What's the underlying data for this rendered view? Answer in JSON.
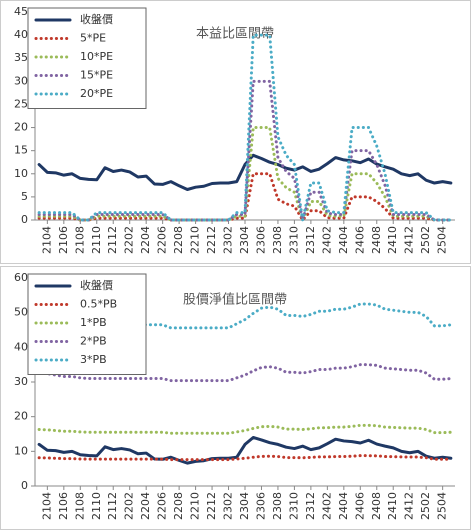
{
  "chart_data": [
    {
      "type": "line",
      "title": "本益比區間帶",
      "legend": "upper left",
      "grid": false,
      "categories": [
        null,
        "2104",
        null,
        "2106",
        null,
        "2108",
        null,
        "2110",
        null,
        "2112",
        null,
        "2202",
        null,
        "2204",
        null,
        "2206",
        null,
        "2208",
        null,
        "2210",
        null,
        "2212",
        null,
        "2302",
        null,
        "2304",
        null,
        "2306",
        null,
        "2308",
        null,
        "2310",
        null,
        "2312",
        null,
        "2402",
        null,
        "2404",
        null,
        "2406",
        null,
        "2408",
        null,
        "2410",
        null,
        "2412",
        null,
        "2502",
        null,
        "2504",
        null
      ],
      "ylim": [
        0,
        45
      ],
      "yticks": [
        0,
        5,
        10,
        15,
        20,
        25,
        30,
        35,
        40,
        45
      ],
      "series": [
        {
          "name": "收盤價",
          "color": "#1f3864",
          "style": "solid",
          "values": [
            12,
            10.3,
            10.2,
            9.7,
            10,
            9,
            8.8,
            8.7,
            11.3,
            10.5,
            10.8,
            10.4,
            9.3,
            9.5,
            7.8,
            7.7,
            8.3,
            7.4,
            6.6,
            7.1,
            7.3,
            7.9,
            8,
            8,
            8.3,
            12,
            14,
            13.3,
            12.5,
            12,
            11.2,
            10.8,
            11.5,
            10.5,
            11,
            12.2,
            13.5,
            13,
            12.8,
            12.4,
            13.2,
            12.1,
            11.5,
            11,
            10,
            9.6,
            10,
            8.6,
            8,
            8.3,
            8
          ]
        },
        {
          "name": "5*PE",
          "color": "#c0392b",
          "style": "dotted",
          "values": [
            0.4,
            0.4,
            0.4,
            0.4,
            0.4,
            0,
            0,
            0.4,
            0.4,
            0.4,
            0.4,
            0.4,
            0.4,
            0.4,
            0.4,
            0.4,
            0,
            0,
            0,
            0,
            0,
            0,
            0,
            0,
            0.4,
            0.4,
            10,
            10,
            10,
            4.5,
            3.5,
            3,
            0,
            2,
            2,
            0.5,
            0.4,
            0.4,
            5,
            5,
            5,
            4,
            2.5,
            0.4,
            0.4,
            0.4,
            0.4,
            0.4,
            0,
            0,
            0
          ]
        },
        {
          "name": "10*PE",
          "color": "#9bbb59",
          "style": "dotted",
          "values": [
            0.8,
            0.8,
            0.8,
            0.8,
            0.8,
            0,
            0,
            0.8,
            0.8,
            0.8,
            0.8,
            0.8,
            0.8,
            0.8,
            0.8,
            0.8,
            0,
            0,
            0,
            0,
            0,
            0,
            0,
            0,
            0.8,
            0.8,
            20,
            20,
            20,
            9,
            7,
            6,
            0,
            4,
            4,
            1,
            0.8,
            0.8,
            10,
            10,
            10,
            8,
            5,
            0.8,
            0.8,
            0.8,
            0.8,
            0.8,
            0,
            0,
            0
          ]
        },
        {
          "name": "15*PE",
          "color": "#8064a2",
          "style": "dotted",
          "values": [
            1.2,
            1.2,
            1.2,
            1.2,
            1.2,
            0,
            0,
            1.2,
            1.2,
            1.2,
            1.2,
            1.2,
            1.2,
            1.2,
            1.2,
            1.2,
            0,
            0,
            0,
            0,
            0,
            0,
            0,
            0,
            1.2,
            1.2,
            30,
            30,
            30,
            13.5,
            10.5,
            9,
            0,
            6,
            6,
            1.5,
            1.2,
            1.2,
            15,
            15,
            15,
            12,
            7.5,
            1.2,
            1.2,
            1.2,
            1.2,
            1.2,
            0,
            0,
            0
          ]
        },
        {
          "name": "20*PE",
          "color": "#4bacc6",
          "style": "dotted",
          "values": [
            1.6,
            1.6,
            1.6,
            1.6,
            1.6,
            0,
            0,
            1.6,
            1.6,
            1.6,
            1.6,
            1.6,
            1.6,
            1.6,
            1.6,
            1.6,
            0,
            0,
            0,
            0,
            0,
            0,
            0,
            0,
            1.6,
            1.6,
            40,
            40,
            40,
            18,
            14,
            12,
            0,
            8,
            8,
            2,
            1.6,
            1.6,
            20,
            20,
            20,
            16,
            10,
            1.6,
            1.6,
            1.6,
            1.6,
            1.6,
            0,
            0,
            0
          ]
        }
      ]
    },
    {
      "type": "line",
      "title": "股價淨值比區間帶",
      "legend": "upper left",
      "grid": false,
      "categories": [
        null,
        "2104",
        null,
        "2106",
        null,
        "2108",
        null,
        "2110",
        null,
        "2112",
        null,
        "2202",
        null,
        "2204",
        null,
        "2206",
        null,
        "2208",
        null,
        "2210",
        null,
        "2212",
        null,
        "2302",
        null,
        "2304",
        null,
        "2306",
        null,
        "2308",
        null,
        "2310",
        null,
        "2312",
        null,
        "2402",
        null,
        "2404",
        null,
        "2406",
        null,
        "2408",
        null,
        "2410",
        null,
        "2412",
        null,
        "2502",
        null,
        "2504",
        null
      ],
      "ylim": [
        0,
        60
      ],
      "yticks": [
        0,
        10,
        20,
        30,
        40,
        50,
        60
      ],
      "series": [
        {
          "name": "收盤價",
          "color": "#1f3864",
          "style": "solid",
          "values": [
            12,
            10.3,
            10.2,
            9.7,
            10,
            9,
            8.8,
            8.7,
            11.3,
            10.5,
            10.8,
            10.4,
            9.3,
            9.5,
            7.8,
            7.7,
            8.3,
            7.4,
            6.6,
            7.1,
            7.3,
            7.9,
            8,
            8,
            8.3,
            12,
            14,
            13.3,
            12.5,
            12,
            11.2,
            10.8,
            11.5,
            10.5,
            11,
            12.2,
            13.5,
            13,
            12.8,
            12.4,
            13.2,
            12.1,
            11.5,
            11,
            10,
            9.6,
            10,
            8.6,
            8,
            8.3,
            8
          ]
        },
        {
          "name": "0.5*PB",
          "color": "#c0392b",
          "style": "dotted",
          "values": [
            8.15,
            8.1,
            8,
            7.9,
            7.9,
            7.8,
            7.75,
            7.75,
            7.75,
            7.75,
            7.75,
            7.75,
            7.75,
            7.75,
            7.75,
            7.75,
            7.6,
            7.6,
            7.6,
            7.6,
            7.6,
            7.6,
            7.6,
            7.6,
            7.8,
            8,
            8.3,
            8.55,
            8.6,
            8.5,
            8.2,
            8.2,
            8.15,
            8.25,
            8.4,
            8.4,
            8.5,
            8.5,
            8.6,
            8.75,
            8.75,
            8.7,
            8.5,
            8.45,
            8.4,
            8.35,
            8.35,
            8.15,
            7.7,
            7.7,
            7.75
          ]
        },
        {
          "name": "1*PB",
          "color": "#9bbb59",
          "style": "dotted",
          "values": [
            16.3,
            16.2,
            16,
            15.8,
            15.8,
            15.6,
            15.5,
            15.5,
            15.5,
            15.5,
            15.5,
            15.5,
            15.5,
            15.5,
            15.5,
            15.5,
            15.2,
            15.2,
            15.2,
            15.2,
            15.2,
            15.2,
            15.2,
            15.2,
            15.6,
            16,
            16.6,
            17.1,
            17.2,
            17,
            16.4,
            16.4,
            16.3,
            16.5,
            16.8,
            16.8,
            17,
            17,
            17.2,
            17.5,
            17.5,
            17.4,
            17,
            16.9,
            16.8,
            16.7,
            16.7,
            16.3,
            15.4,
            15.4,
            15.5
          ]
        },
        {
          "name": "2*PB",
          "color": "#8064a2",
          "style": "dotted",
          "values": [
            32.6,
            32.4,
            32,
            31.6,
            31.6,
            31.2,
            31,
            31,
            31,
            31,
            31,
            31,
            31,
            31,
            31,
            31,
            30.4,
            30.4,
            30.4,
            30.4,
            30.4,
            30.4,
            30.4,
            30.4,
            31.2,
            32,
            33.2,
            34.2,
            34.4,
            34,
            32.8,
            32.8,
            32.6,
            33,
            33.6,
            33.6,
            34,
            34,
            34.4,
            35,
            35,
            34.8,
            34,
            33.8,
            33.6,
            33.4,
            33.4,
            32.6,
            30.8,
            30.8,
            31
          ]
        },
        {
          "name": "3*PB",
          "color": "#4bacc6",
          "style": "dotted",
          "values": [
            48.9,
            48.6,
            48,
            47.4,
            47.4,
            46.8,
            46.5,
            46.5,
            46.5,
            46.5,
            46.5,
            46.5,
            46.5,
            46.5,
            46.5,
            46.5,
            45.6,
            45.6,
            45.6,
            45.6,
            45.6,
            45.6,
            45.6,
            45.6,
            46.8,
            48,
            49.8,
            51.3,
            51.6,
            51,
            49.2,
            49.2,
            48.9,
            49.5,
            50.4,
            50.4,
            51,
            51,
            51.6,
            52.5,
            52.5,
            52.2,
            51,
            50.7,
            50.4,
            50.1,
            50.1,
            48.9,
            46.2,
            46.2,
            46.5
          ]
        }
      ]
    }
  ]
}
